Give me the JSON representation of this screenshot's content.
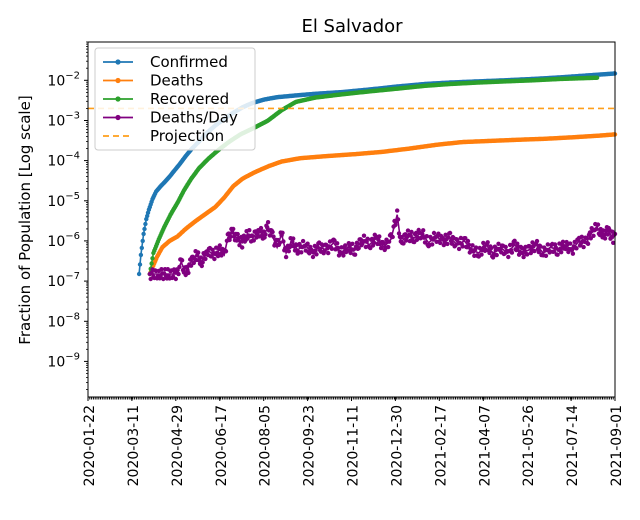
{
  "chart_data": {
    "type": "line",
    "title": "El Salvador",
    "xlabel": "",
    "ylabel": "Fraction of Population [Log scale]",
    "yscale": "log",
    "ylim": [
      1.3e-10,
      0.09
    ],
    "xlim": [
      "2020-01-22",
      "2021-09-01"
    ],
    "x_ticks": [
      "2020-01-22",
      "2020-03-11",
      "2020-04-29",
      "2020-06-17",
      "2020-08-05",
      "2020-09-23",
      "2020-11-11",
      "2020-12-30",
      "2021-02-17",
      "2021-04-07",
      "2021-05-26",
      "2021-07-14",
      "2021-09-01"
    ],
    "y_ticks": [
      {
        "value": 1e-09,
        "mant": "10",
        "exp": "−9"
      },
      {
        "value": 1e-08,
        "mant": "10",
        "exp": "−8"
      },
      {
        "value": 1e-07,
        "mant": "10",
        "exp": "−7"
      },
      {
        "value": 1e-06,
        "mant": "10",
        "exp": "−6"
      },
      {
        "value": 1e-05,
        "mant": "10",
        "exp": "−5"
      },
      {
        "value": 0.0001,
        "mant": "10",
        "exp": "−4"
      },
      {
        "value": 0.001,
        "mant": "10",
        "exp": "−3"
      },
      {
        "value": 0.01,
        "mant": "10",
        "exp": "−2"
      }
    ],
    "legend_position": "top-left",
    "projection": {
      "name": "Projection",
      "value": 0.002,
      "color": "#ff9f1a",
      "style": "dashed"
    },
    "series": [
      {
        "name": "Confirmed",
        "color": "#1f77b4",
        "points": [
          [
            "2020-03-19",
            1.5e-07
          ],
          [
            "2020-03-21",
            4.5e-07
          ],
          [
            "2020-03-24",
            1.5e-06
          ],
          [
            "2020-03-27",
            3.5e-06
          ],
          [
            "2020-03-30",
            6e-06
          ],
          [
            "2020-04-03",
            1.1e-05
          ],
          [
            "2020-04-07",
            1.7e-05
          ],
          [
            "2020-04-12",
            2.3e-05
          ],
          [
            "2020-04-17",
            3e-05
          ],
          [
            "2020-04-22",
            4e-05
          ],
          [
            "2020-04-27",
            5.5e-05
          ],
          [
            "2020-05-03",
            8e-05
          ],
          [
            "2020-05-10",
            0.00013
          ],
          [
            "2020-05-17",
            0.0002
          ],
          [
            "2020-05-25",
            0.0003
          ],
          [
            "2020-06-03",
            0.0005
          ],
          [
            "2020-06-12",
            0.00075
          ],
          [
            "2020-06-22",
            0.0011
          ],
          [
            "2020-07-01",
            0.0015
          ],
          [
            "2020-07-12",
            0.0021
          ],
          [
            "2020-07-23",
            0.0027
          ],
          [
            "2020-08-05",
            0.0033
          ],
          [
            "2020-08-20",
            0.0038
          ],
          [
            "2020-09-10",
            0.0042
          ],
          [
            "2020-10-01",
            0.0046
          ],
          [
            "2020-11-01",
            0.0051
          ],
          [
            "2020-12-01",
            0.0059
          ],
          [
            "2021-01-01",
            0.007
          ],
          [
            "2021-02-01",
            0.0081
          ],
          [
            "2021-03-01",
            0.0088
          ],
          [
            "2021-04-01",
            0.0094
          ],
          [
            "2021-05-01",
            0.01
          ],
          [
            "2021-06-01",
            0.0108
          ],
          [
            "2021-07-01",
            0.0118
          ],
          [
            "2021-08-01",
            0.0132
          ],
          [
            "2021-09-01",
            0.0148
          ]
        ]
      },
      {
        "name": "Deaths",
        "color": "#ff7f0e",
        "points": [
          [
            "2020-03-31",
            1.5e-07
          ],
          [
            "2020-04-08",
            4e-07
          ],
          [
            "2020-04-14",
            7e-07
          ],
          [
            "2020-04-22",
            1e-06
          ],
          [
            "2020-05-01",
            1.3e-06
          ],
          [
            "2020-05-10",
            2e-06
          ],
          [
            "2020-05-20",
            3e-06
          ],
          [
            "2020-05-31",
            4.5e-06
          ],
          [
            "2020-06-12",
            7e-06
          ],
          [
            "2020-06-22",
            1.2e-05
          ],
          [
            "2020-07-02",
            2.3e-05
          ],
          [
            "2020-07-12",
            3.5e-05
          ],
          [
            "2020-07-25",
            5e-05
          ],
          [
            "2020-08-10",
            7.2e-05
          ],
          [
            "2020-08-25",
            9.5e-05
          ],
          [
            "2020-09-15",
            0.000115
          ],
          [
            "2020-10-15",
            0.00013
          ],
          [
            "2020-11-15",
            0.000145
          ],
          [
            "2020-12-15",
            0.000165
          ],
          [
            "2021-01-15",
            0.0002
          ],
          [
            "2021-02-15",
            0.00025
          ],
          [
            "2021-03-15",
            0.00029
          ],
          [
            "2021-04-15",
            0.00031
          ],
          [
            "2021-05-15",
            0.00033
          ],
          [
            "2021-06-15",
            0.00035
          ],
          [
            "2021-07-15",
            0.00038
          ],
          [
            "2021-08-15",
            0.00042
          ],
          [
            "2021-09-01",
            0.00045
          ]
        ]
      },
      {
        "name": "Recovered",
        "color": "#2ca02c",
        "points": [
          [
            "2020-03-31",
            1.5e-07
          ],
          [
            "2020-04-04",
            5e-07
          ],
          [
            "2020-04-10",
            1.1e-06
          ],
          [
            "2020-04-16",
            2.2e-06
          ],
          [
            "2020-04-23",
            4.5e-06
          ],
          [
            "2020-05-01",
            9e-06
          ],
          [
            "2020-05-08",
            1.8e-05
          ],
          [
            "2020-05-16",
            3.5e-05
          ],
          [
            "2020-05-25",
            6.5e-05
          ],
          [
            "2020-06-04",
            0.00011
          ],
          [
            "2020-06-15",
            0.00018
          ],
          [
            "2020-06-28",
            0.0003
          ],
          [
            "2020-07-10",
            0.00045
          ],
          [
            "2020-07-25",
            0.00065
          ],
          [
            "2020-08-10",
            0.001
          ],
          [
            "2020-08-25",
            0.0018
          ],
          [
            "2020-09-10",
            0.0029
          ],
          [
            "2020-10-01",
            0.0037
          ],
          [
            "2020-11-01",
            0.0045
          ],
          [
            "2020-12-01",
            0.0053
          ],
          [
            "2021-01-01",
            0.0062
          ],
          [
            "2021-02-01",
            0.0073
          ],
          [
            "2021-03-01",
            0.0081
          ],
          [
            "2021-04-01",
            0.0088
          ],
          [
            "2021-05-01",
            0.0094
          ],
          [
            "2021-06-01",
            0.01
          ],
          [
            "2021-07-01",
            0.0108
          ],
          [
            "2021-08-01",
            0.0114
          ],
          [
            "2021-08-12",
            0.0116
          ]
        ]
      },
      {
        "name": "Deaths/Day",
        "color": "#800080",
        "points": [
          [
            "2020-03-31",
            1.5e-07
          ],
          [
            "2020-04-10",
            1.5e-07
          ],
          [
            "2020-04-20",
            1.5e-07
          ],
          [
            "2020-04-30",
            1.5e-07
          ],
          [
            "2020-05-05",
            3e-07
          ],
          [
            "2020-05-10",
            1.5e-07
          ],
          [
            "2020-05-16",
            3e-07
          ],
          [
            "2020-05-22",
            4.5e-07
          ],
          [
            "2020-05-28",
            3e-07
          ],
          [
            "2020-06-03",
            6e-07
          ],
          [
            "2020-06-10",
            4.5e-07
          ],
          [
            "2020-06-17",
            6e-07
          ],
          [
            "2020-06-22",
            4.5e-07
          ],
          [
            "2020-06-26",
            1.2e-06
          ],
          [
            "2020-07-01",
            1.6e-06
          ],
          [
            "2020-07-06",
            1.2e-06
          ],
          [
            "2020-07-12",
            9e-07
          ],
          [
            "2020-07-18",
            1.5e-06
          ],
          [
            "2020-07-24",
            1.2e-06
          ],
          [
            "2020-07-30",
            1.8e-06
          ],
          [
            "2020-08-05",
            1.4e-06
          ],
          [
            "2020-08-10",
            2.2e-06
          ],
          [
            "2020-08-15",
            1.3e-06
          ],
          [
            "2020-08-20",
            7e-07
          ],
          [
            "2020-08-25",
            1.5e-06
          ],
          [
            "2020-08-30",
            5e-07
          ],
          [
            "2020-09-05",
            1e-06
          ],
          [
            "2020-09-12",
            6e-07
          ],
          [
            "2020-09-20",
            8e-07
          ],
          [
            "2020-09-28",
            5e-07
          ],
          [
            "2020-10-06",
            7e-07
          ],
          [
            "2020-10-14",
            6e-07
          ],
          [
            "2020-10-22",
            9e-07
          ],
          [
            "2020-10-30",
            5e-07
          ],
          [
            "2020-11-07",
            7e-07
          ],
          [
            "2020-11-15",
            6e-07
          ],
          [
            "2020-11-23",
            1.1e-06
          ],
          [
            "2020-12-01",
            8e-07
          ],
          [
            "2020-12-09",
            1.2e-06
          ],
          [
            "2020-12-17",
            7e-07
          ],
          [
            "2020-12-25",
            1.1e-06
          ],
          [
            "2021-01-01",
            4.5e-06
          ],
          [
            "2021-01-05",
            9e-07
          ],
          [
            "2021-01-12",
            1.4e-06
          ],
          [
            "2021-01-20",
            1.2e-06
          ],
          [
            "2021-01-28",
            1.6e-06
          ],
          [
            "2021-02-05",
            9e-07
          ],
          [
            "2021-02-13",
            1.3e-06
          ],
          [
            "2021-02-21",
            1e-06
          ],
          [
            "2021-03-01",
            1.2e-06
          ],
          [
            "2021-03-09",
            8e-07
          ],
          [
            "2021-03-17",
            1e-06
          ],
          [
            "2021-03-25",
            6e-07
          ],
          [
            "2021-04-02",
            5e-07
          ],
          [
            "2021-04-10",
            8e-07
          ],
          [
            "2021-04-18",
            5e-07
          ],
          [
            "2021-04-26",
            7e-07
          ],
          [
            "2021-05-04",
            5e-07
          ],
          [
            "2021-05-12",
            8e-07
          ],
          [
            "2021-05-20",
            5e-07
          ],
          [
            "2021-05-28",
            6e-07
          ],
          [
            "2021-06-05",
            8e-07
          ],
          [
            "2021-06-13",
            5e-07
          ],
          [
            "2021-06-21",
            7e-07
          ],
          [
            "2021-06-29",
            6e-07
          ],
          [
            "2021-07-07",
            8e-07
          ],
          [
            "2021-07-15",
            6e-07
          ],
          [
            "2021-07-23",
            1e-06
          ],
          [
            "2021-07-31",
            9e-07
          ],
          [
            "2021-08-06",
            1.6e-06
          ],
          [
            "2021-08-12",
            2.2e-06
          ],
          [
            "2021-08-18",
            1.3e-06
          ],
          [
            "2021-08-24",
            1.8e-06
          ],
          [
            "2021-08-30",
            1.2e-06
          ],
          [
            "2021-09-01",
            1.5e-06
          ]
        ]
      }
    ]
  }
}
